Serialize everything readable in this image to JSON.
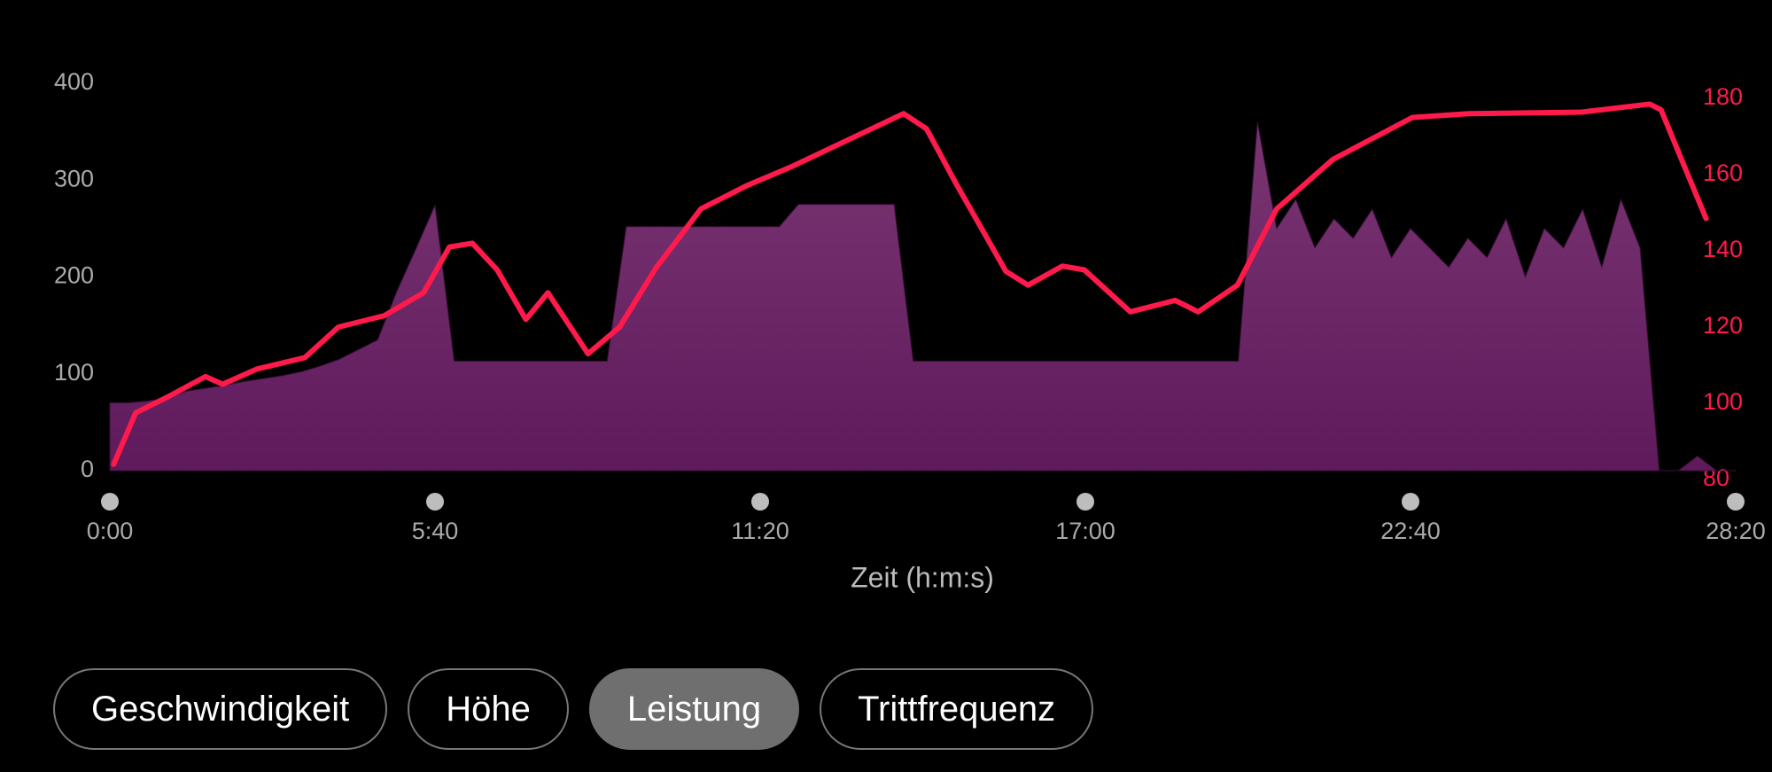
{
  "chart_data": {
    "type": "area_line",
    "xlabel": "Zeit (h:m:s)",
    "xlim": [
      0,
      1700
    ],
    "xticks": [
      {
        "value": 0,
        "label": "0:00"
      },
      {
        "value": 340,
        "label": "5:40"
      },
      {
        "value": 680,
        "label": "11:20"
      },
      {
        "value": 1020,
        "label": "17:00"
      },
      {
        "value": 1360,
        "label": "22:40"
      },
      {
        "value": 1700,
        "label": "28:20"
      }
    ],
    "ylim": [
      0,
      400
    ],
    "yticks": [
      0,
      100,
      200,
      300,
      400
    ],
    "y2lim": [
      80,
      180
    ],
    "y2ticks": [
      80,
      100,
      120,
      140,
      160,
      180
    ],
    "series": [
      {
        "kind": "area",
        "color": "#6e2468",
        "x": [
          0,
          20,
          40,
          60,
          80,
          100,
          120,
          140,
          160,
          180,
          200,
          220,
          240,
          260,
          280,
          300,
          320,
          340,
          360,
          380,
          400,
          420,
          440,
          460,
          480,
          500,
          520,
          540,
          560,
          580,
          600,
          620,
          640,
          660,
          680,
          700,
          720,
          740,
          760,
          780,
          800,
          820,
          840,
          860,
          880,
          900,
          920,
          940,
          960,
          980,
          1000,
          1020,
          1040,
          1060,
          1080,
          1100,
          1120,
          1140,
          1160,
          1180,
          1200,
          1220,
          1240,
          1260,
          1280,
          1300,
          1320,
          1340,
          1360,
          1380,
          1400,
          1420,
          1440,
          1460,
          1480,
          1500,
          1520,
          1540,
          1560,
          1580,
          1600,
          1620,
          1640,
          1660,
          1680,
          1700
        ],
        "values": [
          70,
          70,
          72,
          75,
          82,
          85,
          88,
          92,
          95,
          98,
          102,
          108,
          115,
          125,
          135,
          185,
          229,
          274,
          113,
          113,
          113,
          113,
          113,
          113,
          113,
          113,
          113,
          252,
          252,
          252,
          252,
          252,
          252,
          252,
          252,
          252,
          275,
          275,
          275,
          275,
          275,
          275,
          113,
          113,
          113,
          113,
          113,
          113,
          113,
          113,
          113,
          113,
          113,
          113,
          113,
          113,
          113,
          113,
          113,
          113,
          360,
          250,
          280,
          230,
          260,
          240,
          270,
          220,
          250,
          230,
          210,
          240,
          220,
          260,
          200,
          250,
          230,
          270,
          210,
          280,
          230,
          0,
          0,
          15,
          0,
          0
        ]
      },
      {
        "kind": "line",
        "axis": "y2",
        "color": "#ff1a4b",
        "x": [
          4,
          27,
          63,
          100,
          118,
          154,
          204,
          239,
          287,
          328,
          355,
          379,
          405,
          435,
          458,
          500,
          533,
          571,
          618,
          665,
          712,
          771,
          830,
          854,
          884,
          937,
          960,
          996,
          1019,
          1067,
          1114,
          1138,
          1179,
          1220,
          1279,
          1362,
          1421,
          1539,
          1610,
          1622,
          1645,
          1669
        ],
        "values": [
          84,
          97.5,
          102,
          107,
          105,
          109,
          112,
          120,
          123,
          129,
          141,
          142,
          135,
          122,
          129,
          113,
          120,
          135.5,
          151,
          157,
          162,
          169,
          176,
          172,
          158,
          134.6,
          131,
          136,
          135,
          124,
          127,
          124,
          131,
          151,
          164,
          175,
          176,
          176.4,
          178.5,
          177,
          163,
          148.5
        ]
      }
    ]
  },
  "buttons": [
    "Geschwindigkeit",
    "Höhe",
    "Leistung",
    "Trittfrequenz"
  ],
  "selected": 2
}
